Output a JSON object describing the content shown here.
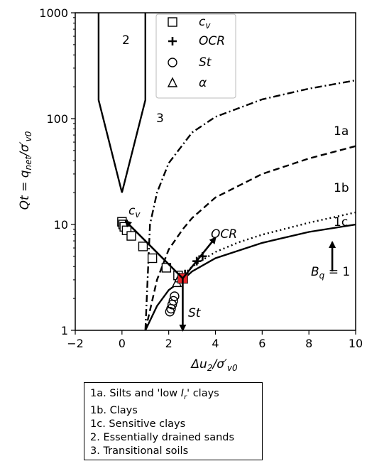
{
  "chart_data": {
    "type": "scatter",
    "xlabel": "Δu₂/σ′v0",
    "ylabel": "Qt = qnet/σ′v0",
    "xlim": [
      -2,
      10
    ],
    "ylim": [
      1,
      1000
    ],
    "yscale": "log",
    "xticks": [
      "−2",
      "0",
      "2",
      "4",
      "6",
      "8",
      "10"
    ],
    "yticks": [
      "1",
      "10",
      "100",
      "1000"
    ],
    "legend_position": "top-center",
    "legend": [
      {
        "marker": "square",
        "label": "c_v"
      },
      {
        "marker": "plus",
        "label": "OCR"
      },
      {
        "marker": "circle",
        "label": "St"
      },
      {
        "marker": "triangle",
        "label": "α"
      }
    ],
    "boundaries": [
      {
        "name": "1a",
        "style": "dashdot",
        "x": [
          1.0,
          1.2,
          1.5,
          2,
          3,
          4,
          6,
          8,
          10
        ],
        "y": [
          1.0,
          10,
          20,
          38,
          74,
          104,
          152,
          192,
          230
        ]
      },
      {
        "name": "1b",
        "style": "dashed",
        "x": [
          1.0,
          1.5,
          2,
          2.6,
          3,
          4,
          6,
          8,
          10
        ],
        "y": [
          1.0,
          3,
          5.8,
          9,
          11.5,
          18,
          30,
          42,
          55
        ]
      },
      {
        "name": "1c",
        "style": "dotted",
        "x": [
          2.4,
          3,
          4,
          5,
          6,
          8,
          10
        ],
        "y": [
          3,
          4,
          5.5,
          6.8,
          8,
          10.4,
          13
        ]
      },
      {
        "name": "Bq = 1",
        "style": "solid",
        "x": [
          1.0,
          1.5,
          2,
          2.6,
          3,
          4,
          6,
          8,
          10
        ],
        "y": [
          1.0,
          1.7,
          2.4,
          3.0,
          3.6,
          4.8,
          6.7,
          8.5,
          10
        ]
      },
      {
        "name": "zone 2/3 boundary",
        "style": "solid",
        "x": [
          -1,
          -1,
          0,
          1,
          1
        ],
        "y": [
          1000,
          150,
          20,
          150,
          1000
        ]
      }
    ],
    "series": [
      {
        "name": "c_v",
        "marker": "square",
        "x": [
          0.0,
          0.05,
          0.1,
          0.2,
          0.4,
          0.9,
          1.3,
          1.9,
          2.4
        ],
        "y": [
          10.6,
          10.0,
          9.5,
          8.8,
          7.8,
          6.2,
          4.8,
          3.9,
          3.3
        ]
      },
      {
        "name": "OCR",
        "marker": "plus",
        "x": [
          2.7,
          3.2,
          3.45
        ],
        "y": [
          3.4,
          4.5,
          5.0
        ]
      },
      {
        "name": "St",
        "marker": "circle",
        "x": [
          2.05,
          2.1,
          2.15,
          2.2,
          2.25
        ],
        "y": [
          1.5,
          1.6,
          1.75,
          1.9,
          2.1
        ]
      },
      {
        "name": "α",
        "marker": "triangle",
        "x": [
          2.35,
          2.45
        ],
        "y": [
          2.8,
          3.1
        ]
      }
    ],
    "red_point": {
      "x": 2.6,
      "y": 3.1
    },
    "arrows": [
      {
        "label": "c_v",
        "from": [
          2.6,
          3.1
        ],
        "to": [
          0.15,
          10.8
        ]
      },
      {
        "label": "OCR",
        "from": [
          2.6,
          3.1
        ],
        "to": [
          4.0,
          7.5
        ]
      },
      {
        "label": "St",
        "from": [
          2.6,
          3.1
        ],
        "to": [
          2.6,
          1.0
        ]
      },
      {
        "label": "B_q = 1",
        "from": [
          9.0,
          3.6
        ],
        "to": [
          9.0,
          6.8
        ]
      }
    ],
    "zone_labels": [
      {
        "text": "2",
        "x": 0.2,
        "y": 600
      },
      {
        "text": "3",
        "x": 1.8,
        "y": 120
      },
      {
        "text": "1a",
        "x": 9.0,
        "y": 180
      },
      {
        "text": "1b",
        "x": 9.0,
        "y": 43
      },
      {
        "text": "1c",
        "x": 9.0,
        "y": 15
      },
      {
        "text": "B_q = 1",
        "x": 9.0,
        "y": 3.0
      }
    ]
  },
  "zone_legend": [
    "1a. Silts and 'low I_r' clays",
    "1b. Clays",
    "1c. Sensitive clays",
    "2. Essentially drained sands",
    "3. Transitional soils"
  ]
}
